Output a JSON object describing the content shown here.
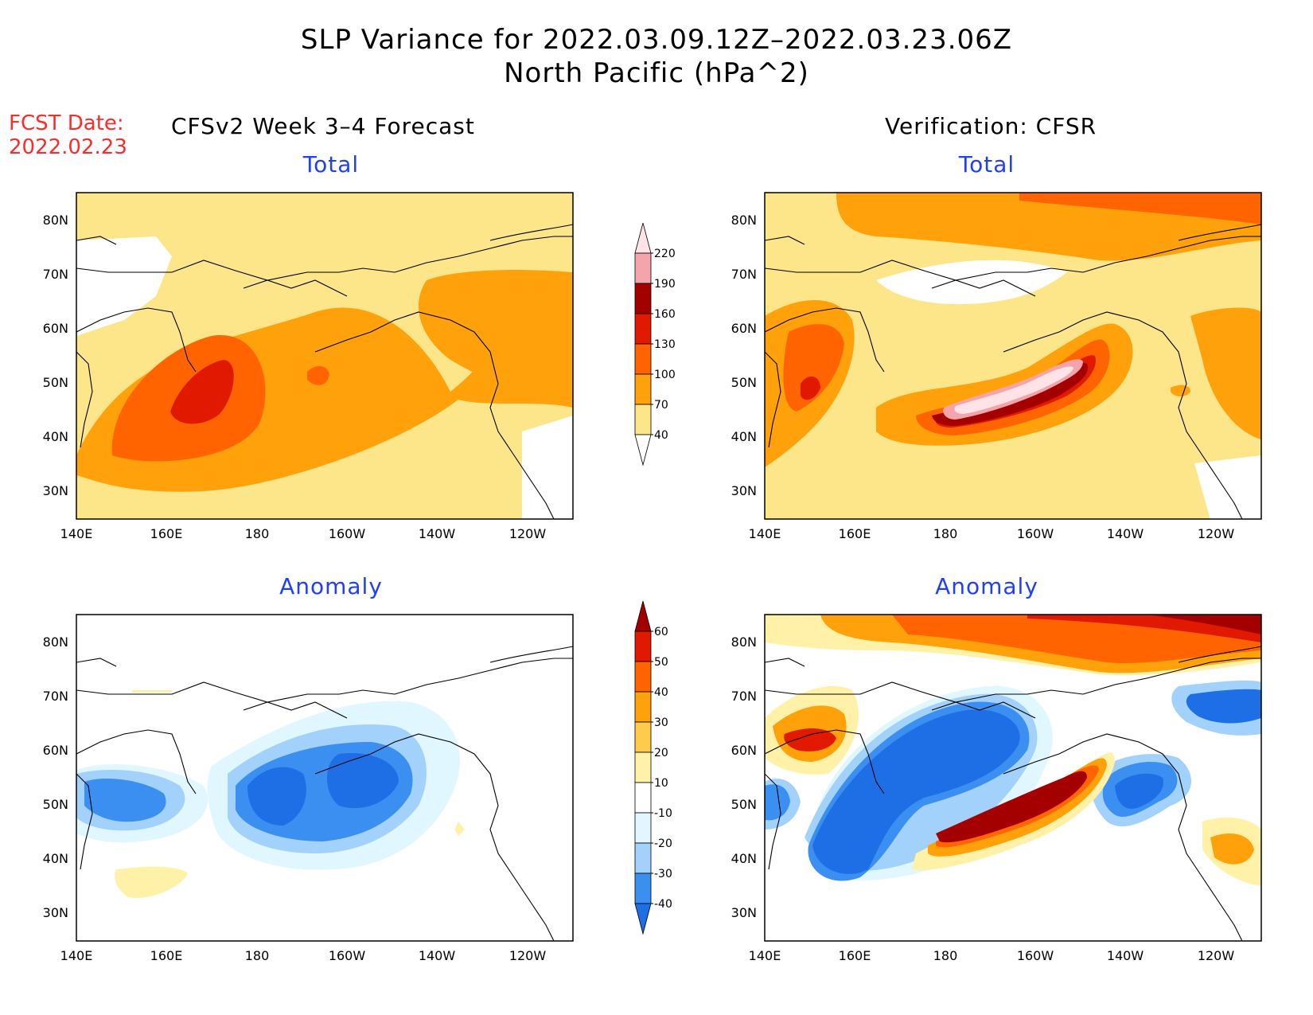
{
  "header": {
    "title_line1": "SLP Variance for 2022.03.09.12Z–2022.03.23.06Z",
    "title_line2": "North Pacific (hPa^2)"
  },
  "fcst": {
    "line1": "FCST Date:",
    "line2": "2022.02.23"
  },
  "columns": {
    "left": "CFSv2 Week 3–4 Forecast",
    "right": "Verification: CFSR"
  },
  "panels": {
    "top_left": {
      "title": "Total"
    },
    "top_right": {
      "title": "Total"
    },
    "bottom_left": {
      "title": "Anomaly"
    },
    "bottom_right": {
      "title": "Anomaly"
    }
  },
  "axes": {
    "lat_labels": [
      "80N",
      "70N",
      "60N",
      "50N",
      "40N",
      "30N"
    ],
    "lat_values": [
      80,
      70,
      60,
      50,
      40,
      30
    ],
    "lon_labels": [
      "140E",
      "160E",
      "180",
      "160W",
      "140W",
      "120W"
    ],
    "lat_range": [
      25,
      85
    ],
    "lon_range_deg_east": [
      140,
      250
    ]
  },
  "colorbars": {
    "total": {
      "labels": [
        "40",
        "70",
        "100",
        "130",
        "160",
        "190",
        "220"
      ],
      "colors": [
        "#ffffff",
        "#fde58a",
        "#ffa10b",
        "#ff6400",
        "#e11900",
        "#a50000",
        "#f4a5ab",
        "#ffe3e6"
      ]
    },
    "anomaly": {
      "labels": [
        "-40",
        "-30",
        "-20",
        "-10",
        "10",
        "20",
        "30",
        "40",
        "50",
        "60"
      ],
      "colors": [
        "#1e6ee6",
        "#3a8ff0",
        "#a2d2fb",
        "#e1f7ff",
        "#ffffff",
        "#fff2a8",
        "#ffcb4c",
        "#ffa10b",
        "#ff6400",
        "#e11900",
        "#a50000"
      ]
    }
  }
}
